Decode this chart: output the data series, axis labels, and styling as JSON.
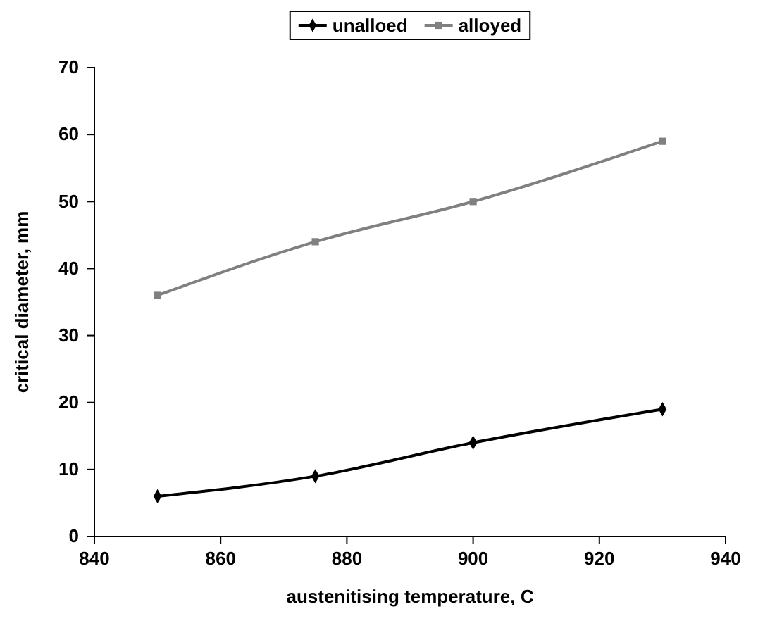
{
  "chart_data": {
    "type": "line",
    "xlabel": "austenitising temperature, C",
    "ylabel": "critical diameter, mm",
    "x": [
      850,
      875,
      900,
      930
    ],
    "series": [
      {
        "name": "unalloed",
        "color": "#000000",
        "marker": "diamond",
        "values": [
          6,
          9,
          14,
          19
        ]
      },
      {
        "name": "alloyed",
        "color": "#808080",
        "marker": "square",
        "values": [
          36,
          44,
          50,
          59
        ]
      }
    ],
    "xlim": [
      840,
      940
    ],
    "xticks": [
      840,
      860,
      880,
      900,
      920,
      940
    ],
    "ylim": [
      0,
      70
    ],
    "yticks": [
      0,
      10,
      20,
      30,
      40,
      50,
      60,
      70
    ],
    "legend": "top",
    "grid": false,
    "line_style": "solid"
  }
}
